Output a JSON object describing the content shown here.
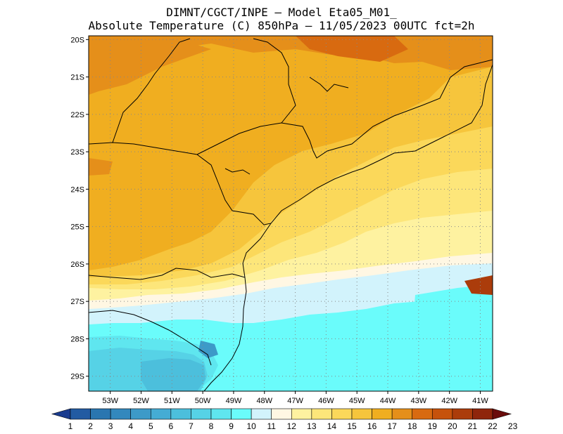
{
  "header": {
    "line1": "DIMNT/CGCT/INPE –  Model Eta05_M01_",
    "line2": "Absolute Temperature (C) 850hPa –  11/05/2023 00UTC fct=2h"
  },
  "map": {
    "lat_labels": [
      "20S",
      "21S",
      "22S",
      "23S",
      "24S",
      "25S",
      "26S",
      "27S",
      "28S",
      "29S"
    ],
    "lon_labels": [
      "53W",
      "52W",
      "51W",
      "50W",
      "49W",
      "48W",
      "47W",
      "46W",
      "45W",
      "44W",
      "43W",
      "42W",
      "41W"
    ],
    "lat_range": [
      -29.4,
      -19.9
    ],
    "lon_range": [
      -53.7,
      -40.6
    ]
  },
  "colorbar": {
    "labels": [
      "1",
      "2",
      "3",
      "4",
      "5",
      "6",
      "7",
      "8",
      "9",
      "10",
      "11",
      "12",
      "13",
      "14",
      "15",
      "16",
      "17",
      "18",
      "19",
      "20",
      "21",
      "22",
      "23"
    ],
    "colors": [
      "#1a3c8f",
      "#225ba2",
      "#2a76b0",
      "#3388bd",
      "#3d9ac8",
      "#45acd4",
      "#4cbfdc",
      "#56d2e6",
      "#5fe6ef",
      "#6afcfb",
      "#d2f3fc",
      "#fff7e3",
      "#fef2a0",
      "#fde67a",
      "#fbd85a",
      "#f6c53c",
      "#f0ae20",
      "#e58f1a",
      "#d86a10",
      "#c6520c",
      "#ab3c0b",
      "#8f250b",
      "#6a0c0b"
    ]
  }
}
